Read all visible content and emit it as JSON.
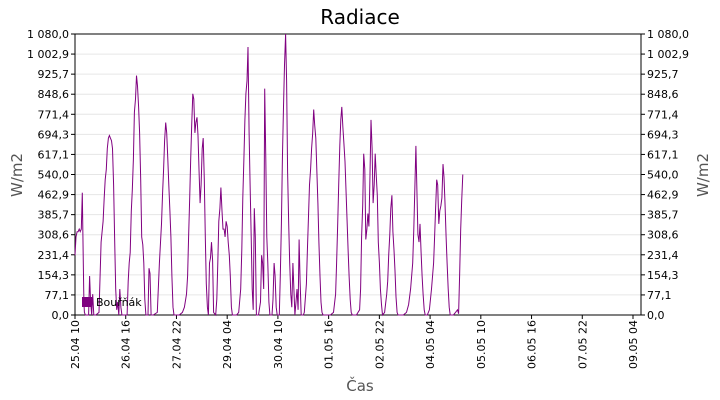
{
  "chart_data": {
    "type": "line",
    "title": "Radiace",
    "xlabel": "Čas",
    "ylabel_left": "W/m2",
    "ylabel_right": "W/m2",
    "ylim": [
      0,
      1080
    ],
    "y_ticks": [
      "0,0",
      "77,1",
      "154,3",
      "231,4",
      "308,6",
      "385,7",
      "462,9",
      "540,0",
      "617,1",
      "694,3",
      "771,4",
      "848,6",
      "925,7",
      "1 002,9",
      "1 080,0"
    ],
    "x_ticks": [
      "25.04 10",
      "26.04 16",
      "27.04 22",
      "29.04 04",
      "30.04 10",
      "01.05 16",
      "02.05 22",
      "04.05 04",
      "05.05 10",
      "06.05 16",
      "07.05 22",
      "09.05 04"
    ],
    "x_range_hours": [
      0,
      1086
    ],
    "grid": true,
    "legend_position": "bottom-left",
    "series": [
      {
        "name": "Bouřňák",
        "color": "#800080",
        "points": [
          [
            0,
            230
          ],
          [
            2,
            300
          ],
          [
            4,
            320
          ],
          [
            6,
            320
          ],
          [
            8,
            330
          ],
          [
            10,
            320
          ],
          [
            12,
            330
          ],
          [
            14,
            470
          ],
          [
            16,
            200
          ],
          [
            17,
            50
          ],
          [
            18,
            10
          ],
          [
            20,
            0
          ],
          [
            24,
            0
          ],
          [
            26,
            0
          ],
          [
            28,
            150
          ],
          [
            30,
            50
          ],
          [
            32,
            0
          ],
          [
            34,
            80
          ],
          [
            36,
            0
          ],
          [
            40,
            0
          ],
          [
            46,
            10
          ],
          [
            50,
            280
          ],
          [
            54,
            360
          ],
          [
            56,
            450
          ],
          [
            58,
            520
          ],
          [
            60,
            560
          ],
          [
            62,
            640
          ],
          [
            64,
            680
          ],
          [
            66,
            690
          ],
          [
            68,
            680
          ],
          [
            70,
            670
          ],
          [
            72,
            640
          ],
          [
            74,
            500
          ],
          [
            76,
            300
          ],
          [
            78,
            100
          ],
          [
            80,
            20
          ],
          [
            82,
            50
          ],
          [
            84,
            0
          ],
          [
            86,
            100
          ],
          [
            88,
            30
          ],
          [
            90,
            0
          ],
          [
            96,
            0
          ],
          [
            100,
            0
          ],
          [
            102,
            130
          ],
          [
            104,
            200
          ],
          [
            106,
            240
          ],
          [
            108,
            400
          ],
          [
            110,
            480
          ],
          [
            112,
            600
          ],
          [
            114,
            780
          ],
          [
            116,
            830
          ],
          [
            118,
            920
          ],
          [
            120,
            880
          ],
          [
            122,
            800
          ],
          [
            124,
            700
          ],
          [
            126,
            520
          ],
          [
            128,
            300
          ],
          [
            130,
            270
          ],
          [
            132,
            200
          ],
          [
            134,
            60
          ],
          [
            136,
            0
          ],
          [
            140,
            0
          ],
          [
            142,
            180
          ],
          [
            144,
            160
          ],
          [
            146,
            0
          ],
          [
            150,
            0
          ],
          [
            158,
            10
          ],
          [
            162,
            200
          ],
          [
            166,
            350
          ],
          [
            168,
            470
          ],
          [
            170,
            560
          ],
          [
            172,
            670
          ],
          [
            174,
            740
          ],
          [
            176,
            700
          ],
          [
            178,
            600
          ],
          [
            180,
            500
          ],
          [
            182,
            400
          ],
          [
            184,
            300
          ],
          [
            186,
            150
          ],
          [
            188,
            30
          ],
          [
            190,
            0
          ],
          [
            200,
            0
          ],
          [
            206,
            10
          ],
          [
            210,
            30
          ],
          [
            214,
            80
          ],
          [
            216,
            150
          ],
          [
            218,
            300
          ],
          [
            220,
            450
          ],
          [
            222,
            600
          ],
          [
            224,
            730
          ],
          [
            226,
            850
          ],
          [
            228,
            830
          ],
          [
            230,
            700
          ],
          [
            232,
            740
          ],
          [
            234,
            760
          ],
          [
            236,
            690
          ],
          [
            238,
            560
          ],
          [
            240,
            430
          ],
          [
            242,
            500
          ],
          [
            244,
            640
          ],
          [
            246,
            680
          ],
          [
            248,
            520
          ],
          [
            250,
            300
          ],
          [
            252,
            120
          ],
          [
            254,
            30
          ],
          [
            256,
            0
          ],
          [
            258,
            200
          ],
          [
            260,
            220
          ],
          [
            262,
            280
          ],
          [
            264,
            210
          ],
          [
            266,
            10
          ],
          [
            270,
            0
          ],
          [
            272,
            60
          ],
          [
            274,
            200
          ],
          [
            276,
            360
          ],
          [
            278,
            410
          ],
          [
            280,
            490
          ],
          [
            282,
            400
          ],
          [
            284,
            330
          ],
          [
            286,
            330
          ],
          [
            288,
            300
          ],
          [
            290,
            360
          ],
          [
            292,
            340
          ],
          [
            294,
            280
          ],
          [
            296,
            230
          ],
          [
            298,
            150
          ],
          [
            300,
            30
          ],
          [
            302,
            0
          ],
          [
            310,
            0
          ],
          [
            314,
            10
          ],
          [
            318,
            100
          ],
          [
            320,
            250
          ],
          [
            322,
            450
          ],
          [
            324,
            600
          ],
          [
            326,
            750
          ],
          [
            328,
            850
          ],
          [
            330,
            900
          ],
          [
            332,
            1030
          ],
          [
            334,
            700
          ],
          [
            336,
            500
          ],
          [
            338,
            300
          ],
          [
            340,
            100
          ],
          [
            342,
            20
          ],
          [
            344,
            410
          ],
          [
            346,
            300
          ],
          [
            348,
            0
          ],
          [
            352,
            0
          ],
          [
            356,
            50
          ],
          [
            358,
            230
          ],
          [
            360,
            200
          ],
          [
            362,
            100
          ],
          [
            364,
            870
          ],
          [
            366,
            600
          ],
          [
            368,
            300
          ],
          [
            370,
            200
          ],
          [
            372,
            50
          ],
          [
            374,
            0
          ],
          [
            378,
            0
          ],
          [
            380,
            60
          ],
          [
            382,
            200
          ],
          [
            384,
            150
          ],
          [
            386,
            30
          ],
          [
            388,
            0
          ],
          [
            392,
            0
          ],
          [
            394,
            150
          ],
          [
            396,
            350
          ],
          [
            398,
            600
          ],
          [
            400,
            800
          ],
          [
            402,
            960
          ],
          [
            404,
            1080
          ],
          [
            406,
            900
          ],
          [
            408,
            550
          ],
          [
            410,
            350
          ],
          [
            412,
            200
          ],
          [
            414,
            80
          ],
          [
            416,
            30
          ],
          [
            418,
            200
          ],
          [
            420,
            100
          ],
          [
            422,
            0
          ],
          [
            424,
            50
          ],
          [
            426,
            100
          ],
          [
            428,
            20
          ],
          [
            430,
            290
          ],
          [
            432,
            130
          ],
          [
            434,
            0
          ],
          [
            438,
            0
          ],
          [
            440,
            10
          ],
          [
            444,
            120
          ],
          [
            446,
            250
          ],
          [
            448,
            380
          ],
          [
            450,
            500
          ],
          [
            452,
            560
          ],
          [
            454,
            640
          ],
          [
            456,
            700
          ],
          [
            458,
            790
          ],
          [
            460,
            730
          ],
          [
            462,
            680
          ],
          [
            464,
            560
          ],
          [
            466,
            430
          ],
          [
            468,
            280
          ],
          [
            470,
            150
          ],
          [
            472,
            50
          ],
          [
            474,
            10
          ],
          [
            476,
            0
          ],
          [
            490,
            0
          ],
          [
            496,
            10
          ],
          [
            500,
            80
          ],
          [
            502,
            200
          ],
          [
            504,
            350
          ],
          [
            506,
            500
          ],
          [
            508,
            650
          ],
          [
            510,
            750
          ],
          [
            512,
            800
          ],
          [
            514,
            720
          ],
          [
            516,
            660
          ],
          [
            518,
            590
          ],
          [
            520,
            480
          ],
          [
            522,
            360
          ],
          [
            524,
            250
          ],
          [
            526,
            150
          ],
          [
            528,
            60
          ],
          [
            530,
            10
          ],
          [
            532,
            0
          ],
          [
            540,
            0
          ],
          [
            546,
            20
          ],
          [
            548,
            100
          ],
          [
            550,
            300
          ],
          [
            552,
            420
          ],
          [
            554,
            620
          ],
          [
            556,
            560
          ],
          [
            558,
            290
          ],
          [
            560,
            330
          ],
          [
            562,
            390
          ],
          [
            564,
            340
          ],
          [
            566,
            540
          ],
          [
            568,
            750
          ],
          [
            570,
            640
          ],
          [
            572,
            430
          ],
          [
            574,
            500
          ],
          [
            576,
            620
          ],
          [
            578,
            540
          ],
          [
            580,
            460
          ],
          [
            582,
            280
          ],
          [
            584,
            200
          ],
          [
            586,
            100
          ],
          [
            588,
            40
          ],
          [
            590,
            0
          ],
          [
            594,
            10
          ],
          [
            598,
            80
          ],
          [
            600,
            130
          ],
          [
            602,
            230
          ],
          [
            604,
            310
          ],
          [
            606,
            410
          ],
          [
            608,
            460
          ],
          [
            610,
            320
          ],
          [
            612,
            250
          ],
          [
            614,
            170
          ],
          [
            616,
            70
          ],
          [
            618,
            10
          ],
          [
            620,
            0
          ],
          [
            630,
            0
          ],
          [
            636,
            10
          ],
          [
            640,
            40
          ],
          [
            644,
            100
          ],
          [
            648,
            200
          ],
          [
            650,
            330
          ],
          [
            652,
            480
          ],
          [
            654,
            650
          ],
          [
            656,
            480
          ],
          [
            658,
            310
          ],
          [
            660,
            280
          ],
          [
            662,
            350
          ],
          [
            664,
            240
          ],
          [
            666,
            150
          ],
          [
            668,
            80
          ],
          [
            670,
            20
          ],
          [
            672,
            0
          ],
          [
            676,
            0
          ],
          [
            680,
            20
          ],
          [
            684,
            100
          ],
          [
            688,
            200
          ],
          [
            690,
            300
          ],
          [
            692,
            420
          ],
          [
            694,
            520
          ],
          [
            696,
            500
          ],
          [
            698,
            350
          ],
          [
            700,
            400
          ],
          [
            702,
            420
          ],
          [
            704,
            450
          ],
          [
            706,
            580
          ],
          [
            708,
            530
          ],
          [
            710,
            430
          ],
          [
            712,
            300
          ],
          [
            714,
            200
          ],
          [
            716,
            100
          ],
          [
            718,
            30
          ],
          [
            720,
            0
          ],
          [
            726,
            0
          ],
          [
            730,
            10
          ],
          [
            734,
            20
          ],
          [
            736,
            5
          ],
          [
            738,
            150
          ],
          [
            740,
            330
          ],
          [
            742,
            440
          ],
          [
            744,
            540
          ]
        ]
      }
    ]
  }
}
